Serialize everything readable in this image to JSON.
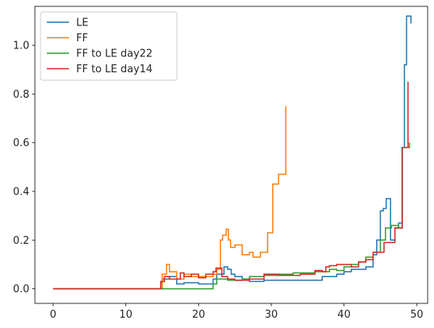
{
  "chart_data": {
    "type": "line",
    "step": true,
    "title": "",
    "xlabel": "",
    "ylabel": "",
    "xlim": [
      -2.5,
      51.5
    ],
    "ylim": [
      -0.06,
      1.16
    ],
    "xticks": [
      0,
      10,
      20,
      30,
      40,
      50
    ],
    "yticks": [
      0.0,
      0.2,
      0.4,
      0.6,
      0.8,
      1.0
    ],
    "xtick_labels": [
      "0",
      "10",
      "20",
      "30",
      "40",
      "50"
    ],
    "ytick_labels": [
      "0.0",
      "0.2",
      "0.4",
      "0.6",
      "0.8",
      "1.0"
    ],
    "grid": false,
    "legend_position": "top-left",
    "series": [
      {
        "name": "LE",
        "color": "#1f77b4",
        "points": [
          [
            0,
            0.0
          ],
          [
            15,
            0.0
          ],
          [
            15,
            0.04
          ],
          [
            16,
            0.04
          ],
          [
            16,
            0.05
          ],
          [
            17,
            0.05
          ],
          [
            17,
            0.02
          ],
          [
            18,
            0.02
          ],
          [
            18,
            0.025
          ],
          [
            20,
            0.025
          ],
          [
            20,
            0.02
          ],
          [
            22,
            0.02
          ],
          [
            22,
            0.04
          ],
          [
            22.5,
            0.04
          ],
          [
            22.5,
            0.06
          ],
          [
            23.5,
            0.06
          ],
          [
            23.5,
            0.09
          ],
          [
            24,
            0.09
          ],
          [
            24,
            0.08
          ],
          [
            24.5,
            0.08
          ],
          [
            24.5,
            0.06
          ],
          [
            25,
            0.06
          ],
          [
            25,
            0.05
          ],
          [
            26,
            0.05
          ],
          [
            26,
            0.04
          ],
          [
            27,
            0.04
          ],
          [
            27,
            0.03
          ],
          [
            29,
            0.03
          ],
          [
            29,
            0.035
          ],
          [
            37,
            0.035
          ],
          [
            37,
            0.05
          ],
          [
            39,
            0.05
          ],
          [
            39,
            0.06
          ],
          [
            40,
            0.06
          ],
          [
            40,
            0.07
          ],
          [
            41,
            0.07
          ],
          [
            41,
            0.08
          ],
          [
            43,
            0.08
          ],
          [
            43,
            0.09
          ],
          [
            44,
            0.09
          ],
          [
            44,
            0.14
          ],
          [
            44.5,
            0.14
          ],
          [
            44.5,
            0.2
          ],
          [
            45,
            0.2
          ],
          [
            45,
            0.32
          ],
          [
            45.4,
            0.32
          ],
          [
            45.4,
            0.33
          ],
          [
            45.8,
            0.33
          ],
          [
            45.8,
            0.37
          ],
          [
            46.4,
            0.37
          ],
          [
            46.4,
            0.2
          ],
          [
            47,
            0.2
          ],
          [
            47,
            0.25
          ],
          [
            47.5,
            0.25
          ],
          [
            47.5,
            0.27
          ],
          [
            48,
            0.27
          ],
          [
            48,
            0.58
          ],
          [
            48.3,
            0.58
          ],
          [
            48.3,
            0.92
          ],
          [
            48.6,
            0.92
          ],
          [
            48.6,
            1.12
          ],
          [
            49.2,
            1.12
          ],
          [
            49.2,
            1.09
          ]
        ]
      },
      {
        "name": "FF",
        "color": "#ff7f0e",
        "points": [
          [
            0,
            0.0
          ],
          [
            15,
            0.0
          ],
          [
            15,
            0.06
          ],
          [
            15.6,
            0.06
          ],
          [
            15.6,
            0.1
          ],
          [
            16,
            0.1
          ],
          [
            16,
            0.07
          ],
          [
            17,
            0.07
          ],
          [
            17,
            0.04
          ],
          [
            18,
            0.04
          ],
          [
            18,
            0.06
          ],
          [
            19,
            0.06
          ],
          [
            19,
            0.05
          ],
          [
            22,
            0.05
          ],
          [
            22,
            0.06
          ],
          [
            22.5,
            0.06
          ],
          [
            22.5,
            0.08
          ],
          [
            23,
            0.08
          ],
          [
            23,
            0.2
          ],
          [
            23.3,
            0.2
          ],
          [
            23.3,
            0.22
          ],
          [
            23.8,
            0.22
          ],
          [
            23.8,
            0.245
          ],
          [
            24.1,
            0.245
          ],
          [
            24.1,
            0.2
          ],
          [
            24.4,
            0.2
          ],
          [
            24.4,
            0.17
          ],
          [
            25,
            0.17
          ],
          [
            25,
            0.18
          ],
          [
            26,
            0.18
          ],
          [
            26,
            0.14
          ],
          [
            27,
            0.14
          ],
          [
            27,
            0.15
          ],
          [
            27.5,
            0.15
          ],
          [
            27.5,
            0.13
          ],
          [
            28.5,
            0.13
          ],
          [
            28.5,
            0.15
          ],
          [
            29.5,
            0.15
          ],
          [
            29.5,
            0.23
          ],
          [
            30.2,
            0.23
          ],
          [
            30.2,
            0.43
          ],
          [
            31,
            0.43
          ],
          [
            31,
            0.47
          ],
          [
            32,
            0.47
          ],
          [
            32,
            0.75
          ]
        ]
      },
      {
        "name": "FF to LE day22",
        "color": "#2ca02c",
        "points": [
          [
            0,
            0.0
          ],
          [
            22,
            0.0
          ],
          [
            22,
            0.02
          ],
          [
            22.5,
            0.02
          ],
          [
            22.5,
            0.04
          ],
          [
            24,
            0.04
          ],
          [
            24,
            0.035
          ],
          [
            26,
            0.035
          ],
          [
            26,
            0.04
          ],
          [
            27,
            0.04
          ],
          [
            27,
            0.05
          ],
          [
            29,
            0.05
          ],
          [
            29,
            0.055
          ],
          [
            31,
            0.055
          ],
          [
            31,
            0.06
          ],
          [
            33,
            0.06
          ],
          [
            33,
            0.065
          ],
          [
            36,
            0.065
          ],
          [
            36,
            0.07
          ],
          [
            38,
            0.07
          ],
          [
            38,
            0.08
          ],
          [
            39,
            0.08
          ],
          [
            39,
            0.075
          ],
          [
            40,
            0.075
          ],
          [
            40,
            0.09
          ],
          [
            41,
            0.09
          ],
          [
            41,
            0.1
          ],
          [
            42,
            0.1
          ],
          [
            42,
            0.11
          ],
          [
            43,
            0.11
          ],
          [
            43,
            0.13
          ],
          [
            44,
            0.13
          ],
          [
            44,
            0.15
          ],
          [
            45,
            0.15
          ],
          [
            45,
            0.2
          ],
          [
            45.7,
            0.2
          ],
          [
            45.7,
            0.25
          ],
          [
            46.5,
            0.25
          ],
          [
            46.5,
            0.26
          ],
          [
            47.5,
            0.26
          ],
          [
            47.5,
            0.25
          ],
          [
            48,
            0.25
          ],
          [
            48,
            0.58
          ],
          [
            49,
            0.58
          ],
          [
            49,
            0.6
          ]
        ]
      },
      {
        "name": "FF to LE day14",
        "color": "#d62728",
        "points": [
          [
            0,
            0.0
          ],
          [
            14.8,
            0.0
          ],
          [
            14.8,
            0.03
          ],
          [
            15.3,
            0.03
          ],
          [
            15.3,
            0.05
          ],
          [
            16,
            0.05
          ],
          [
            16,
            0.04
          ],
          [
            17.5,
            0.04
          ],
          [
            17.5,
            0.065
          ],
          [
            18,
            0.065
          ],
          [
            18,
            0.05
          ],
          [
            19,
            0.05
          ],
          [
            19,
            0.06
          ],
          [
            20,
            0.06
          ],
          [
            20,
            0.045
          ],
          [
            21,
            0.045
          ],
          [
            21,
            0.06
          ],
          [
            22,
            0.06
          ],
          [
            22,
            0.07
          ],
          [
            22.4,
            0.07
          ],
          [
            22.4,
            0.085
          ],
          [
            23.2,
            0.085
          ],
          [
            23.2,
            0.05
          ],
          [
            24,
            0.05
          ],
          [
            24,
            0.04
          ],
          [
            25,
            0.04
          ],
          [
            25,
            0.035
          ],
          [
            27,
            0.035
          ],
          [
            27,
            0.04
          ],
          [
            29,
            0.04
          ],
          [
            29,
            0.06
          ],
          [
            31,
            0.06
          ],
          [
            31,
            0.055
          ],
          [
            34,
            0.055
          ],
          [
            34,
            0.06
          ],
          [
            36,
            0.06
          ],
          [
            36,
            0.075
          ],
          [
            37,
            0.075
          ],
          [
            37,
            0.07
          ],
          [
            37.5,
            0.07
          ],
          [
            37.5,
            0.09
          ],
          [
            38,
            0.09
          ],
          [
            38,
            0.095
          ],
          [
            39,
            0.095
          ],
          [
            39,
            0.1
          ],
          [
            41,
            0.1
          ],
          [
            41,
            0.09
          ],
          [
            42,
            0.09
          ],
          [
            42,
            0.11
          ],
          [
            43,
            0.11
          ],
          [
            43,
            0.12
          ],
          [
            44,
            0.12
          ],
          [
            44,
            0.15
          ],
          [
            45.5,
            0.15
          ],
          [
            45.5,
            0.19
          ],
          [
            47,
            0.19
          ],
          [
            47,
            0.25
          ],
          [
            48,
            0.25
          ],
          [
            48,
            0.58
          ],
          [
            48.8,
            0.58
          ],
          [
            48.8,
            0.85
          ]
        ]
      }
    ]
  }
}
